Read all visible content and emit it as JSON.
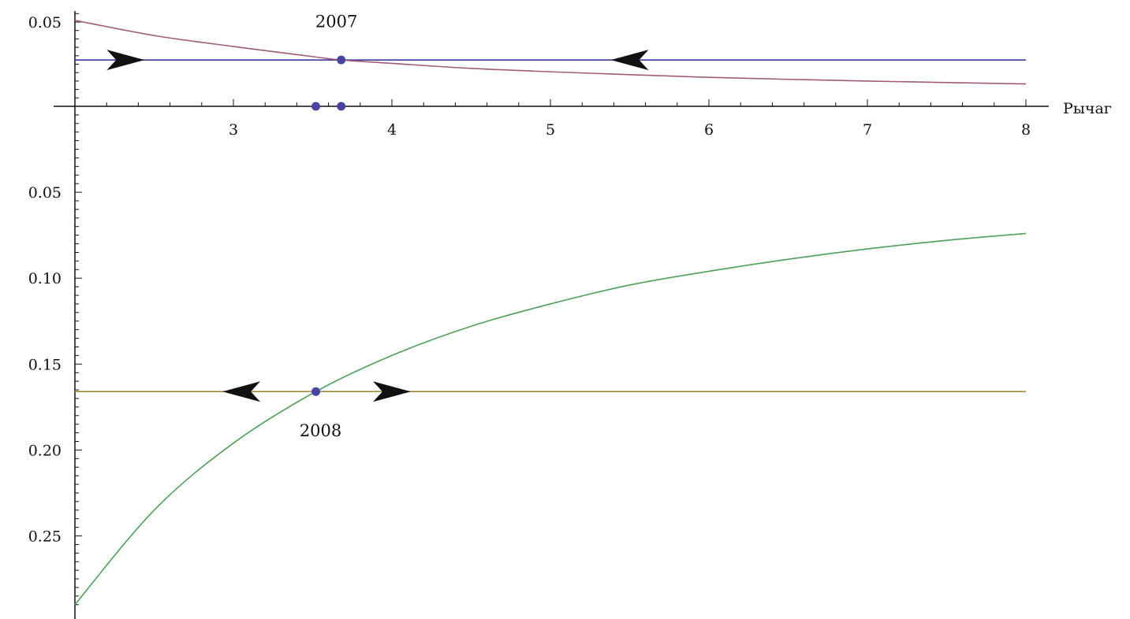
{
  "chart_data": {
    "type": "line",
    "title": "",
    "xlabel": "Рычаг",
    "ylabel": "",
    "xlim": [
      2,
      8
    ],
    "x_ticks": [
      3,
      4,
      5,
      6,
      7,
      8
    ],
    "panels": [
      {
        "name": "upper",
        "ylim": [
          0,
          0.052
        ],
        "y_ticks": [
          0.05
        ],
        "series": [
          {
            "color": "#3b3b9b",
            "x": [
              2,
              8
            ],
            "y": [
              0.0275,
              0.0275
            ]
          },
          {
            "color": "#a05a7a",
            "x": [
              2,
              2.5,
              3,
              3.5,
              3.68,
              4,
              4.5,
              5,
              5.5,
              6,
              6.5,
              7,
              7.5,
              8
            ],
            "y": [
              0.051,
              0.042,
              0.0355,
              0.0295,
              0.0275,
              0.0255,
              0.0225,
              0.0205,
              0.0188,
              0.0172,
              0.016,
              0.015,
              0.0141,
              0.0133
            ]
          }
        ],
        "points": [
          {
            "x": 3.68,
            "y": 0.0275,
            "color": "#4646a0"
          },
          {
            "x": 3.52,
            "y": 0,
            "color": "#4646a0"
          },
          {
            "x": 3.68,
            "y": 0,
            "color": "#4646a0"
          }
        ],
        "arrows": [
          {
            "x": 2.32,
            "y": 0.0275,
            "direction": "right"
          },
          {
            "x": 5.5,
            "y": 0.0275,
            "direction": "left"
          }
        ],
        "annotations": [
          {
            "text": "2007",
            "x": 3.65,
            "y": 0.047
          }
        ]
      },
      {
        "name": "lower",
        "ylim": [
          0,
          0.29
        ],
        "y_ticks": [
          0.05,
          0.1,
          0.15,
          0.2,
          0.25
        ],
        "y_tick_labels": [
          "0.05",
          "0.10",
          "0.15",
          "0.20",
          "0.25"
        ],
        "series": [
          {
            "color": "#a08a3c",
            "x": [
              2,
              8
            ],
            "y": [
              0.166,
              0.166
            ]
          },
          {
            "color": "#4ea05a",
            "x": [
              2,
              2.5,
              3,
              3.52,
              4,
              4.5,
              5,
              5.5,
              6,
              6.5,
              7,
              7.5,
              8
            ],
            "y": [
              0.29,
              0.235,
              0.196,
              0.166,
              0.145,
              0.128,
              0.115,
              0.104,
              0.096,
              0.089,
              0.083,
              0.078,
              0.074
            ]
          }
        ],
        "points": [
          {
            "x": 3.52,
            "y": 0.166,
            "color": "#4646a0"
          }
        ],
        "arrows": [
          {
            "x": 3.05,
            "y": 0.166,
            "direction": "left"
          },
          {
            "x": 4.0,
            "y": 0.166,
            "direction": "right"
          }
        ],
        "annotations": [
          {
            "text": "2008",
            "x": 3.55,
            "y": 0.192
          }
        ]
      }
    ]
  }
}
